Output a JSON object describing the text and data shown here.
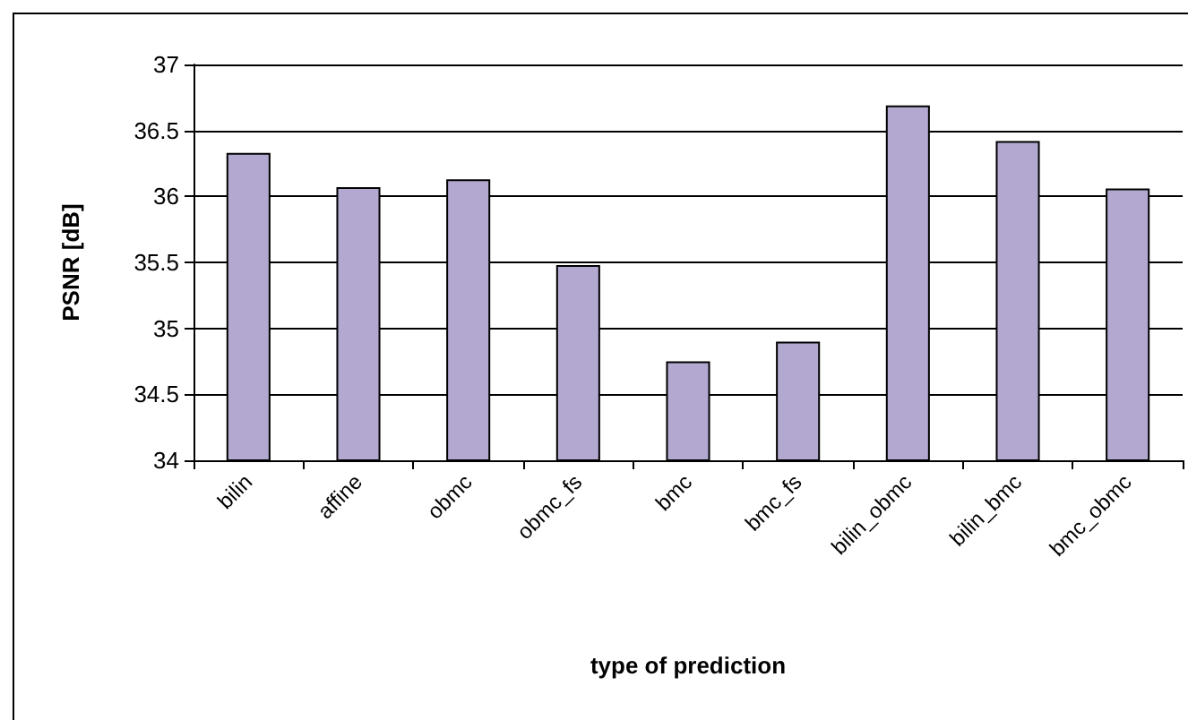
{
  "chart_data": {
    "type": "bar",
    "xlabel": "type of prediction",
    "ylabel": "PSNR [dB]",
    "categories": [
      "bilin",
      "affine",
      "obmc",
      "obmc_fs",
      "bmc",
      "bmc_fs",
      "bilin_obmc",
      "bilin_bmc",
      "bmc_obmc"
    ],
    "values": [
      36.33,
      36.07,
      36.13,
      35.48,
      34.75,
      34.9,
      36.69,
      36.42,
      36.06
    ],
    "color": "#b3a9d0",
    "ylim": [
      34,
      37
    ],
    "yticks": [
      34,
      34.5,
      35,
      35.5,
      36,
      36.5,
      37
    ],
    "grid": "y"
  }
}
